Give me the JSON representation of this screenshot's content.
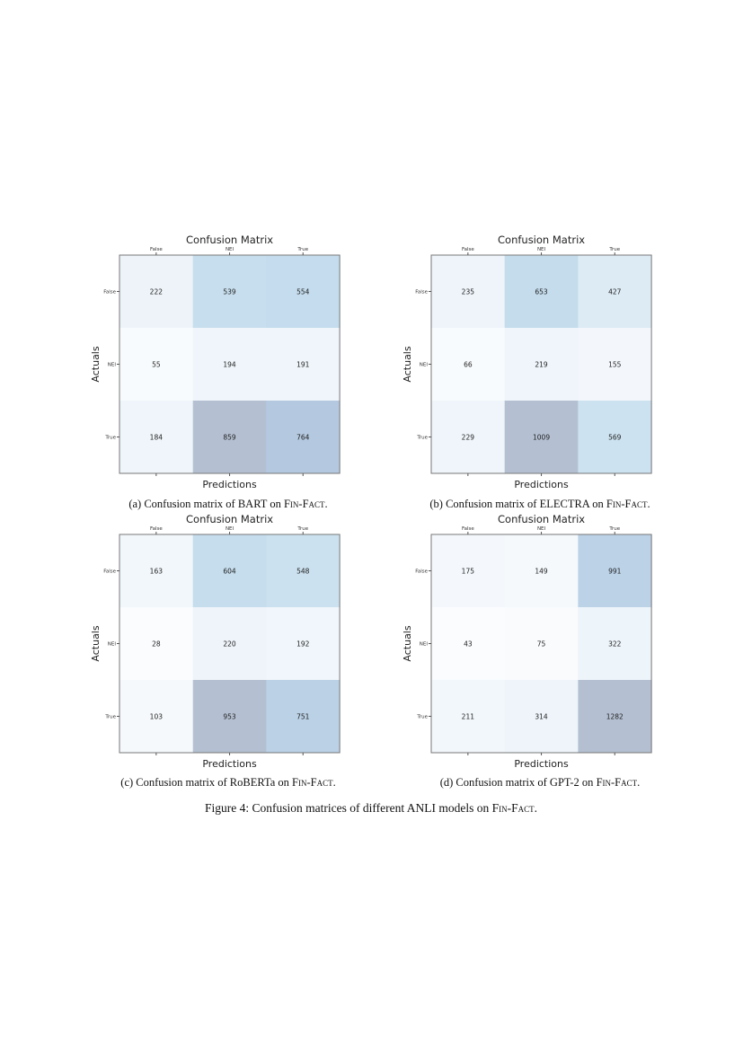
{
  "figure_caption": {
    "prefix": "Figure 4: Confusion matrices of different ANLI models on ",
    "dataset": "Fin-Fact",
    "suffix": "."
  },
  "colormap": "Blues (alpha 0.3)",
  "chart_data": [
    {
      "type": "heatmap",
      "title": "Confusion Matrix",
      "xlabel": "Predictions",
      "ylabel": "Actuals",
      "x_categories": [
        "False",
        "NEI",
        "True"
      ],
      "y_categories": [
        "False",
        "NEI",
        "True"
      ],
      "values": [
        [
          222,
          539,
          554
        ],
        [
          55,
          194,
          191
        ],
        [
          184,
          859,
          764
        ]
      ],
      "caption": {
        "prefix": "(a) Confusion matrix of BART on ",
        "dataset": "Fin-Fact",
        "suffix": "."
      }
    },
    {
      "type": "heatmap",
      "title": "Confusion Matrix",
      "xlabel": "Predictions",
      "ylabel": "Actuals",
      "x_categories": [
        "False",
        "NEI",
        "True"
      ],
      "y_categories": [
        "False",
        "NEI",
        "True"
      ],
      "values": [
        [
          235,
          653,
          427
        ],
        [
          66,
          219,
          155
        ],
        [
          229,
          1009,
          569
        ]
      ],
      "caption": {
        "prefix": "(b) Confusion matrix of ELECTRA on ",
        "dataset": "Fin-Fact",
        "suffix": "."
      }
    },
    {
      "type": "heatmap",
      "title": "Confusion Matrix",
      "xlabel": "Predictions",
      "ylabel": "Actuals",
      "x_categories": [
        "False",
        "NEI",
        "True"
      ],
      "y_categories": [
        "False",
        "NEI",
        "True"
      ],
      "values": [
        [
          163,
          604,
          548
        ],
        [
          28,
          220,
          192
        ],
        [
          103,
          953,
          751
        ]
      ],
      "caption": {
        "prefix": "(c) Confusion matrix of RoBERTa on ",
        "dataset": "Fin-Fact",
        "suffix": "."
      }
    },
    {
      "type": "heatmap",
      "title": "Confusion Matrix",
      "xlabel": "Predictions",
      "ylabel": "Actuals",
      "x_categories": [
        "False",
        "NEI",
        "True"
      ],
      "y_categories": [
        "False",
        "NEI",
        "True"
      ],
      "values": [
        [
          175,
          149,
          991
        ],
        [
          43,
          75,
          322
        ],
        [
          211,
          314,
          1282
        ]
      ],
      "caption": {
        "prefix": "(d) Confusion matrix of GPT-2 on ",
        "dataset": "Fin-Fact",
        "suffix": "."
      }
    }
  ]
}
